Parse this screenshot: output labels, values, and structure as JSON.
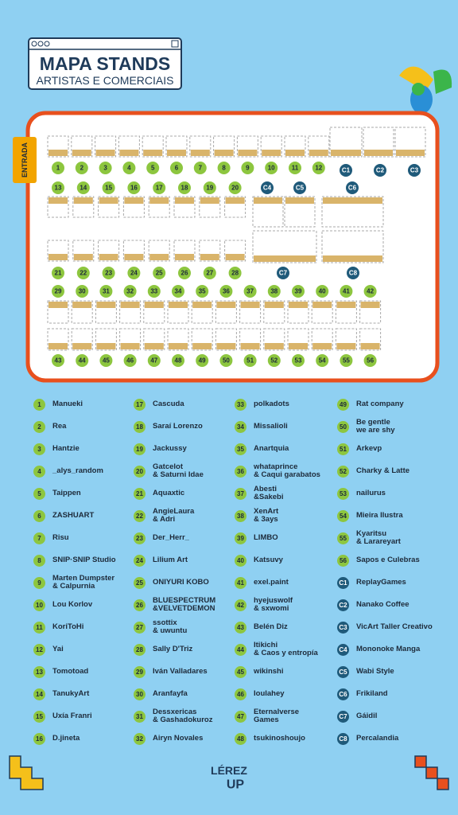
{
  "header": {
    "title": "MAPA STANDS",
    "subtitle": "ARTISTAS E COMERCIAIS"
  },
  "entrance": "ENTRADA",
  "legend": {
    "items": [
      {
        "id": "1",
        "name": "Manueki"
      },
      {
        "id": "2",
        "name": "Rea"
      },
      {
        "id": "3",
        "name": "Hantzie"
      },
      {
        "id": "4",
        "name": "_alys_random"
      },
      {
        "id": "5",
        "name": "Taippen"
      },
      {
        "id": "6",
        "name": "ZASHUART"
      },
      {
        "id": "7",
        "name": "Risu"
      },
      {
        "id": "8",
        "name": "SNIP·SNIP Studio"
      },
      {
        "id": "9",
        "name": "Marten Dumpster\n& Calpurnia"
      },
      {
        "id": "10",
        "name": "Lou Korlov"
      },
      {
        "id": "11",
        "name": "KoriToHi"
      },
      {
        "id": "12",
        "name": "Yai"
      },
      {
        "id": "13",
        "name": "Tomotoad"
      },
      {
        "id": "14",
        "name": "TanukyArt"
      },
      {
        "id": "15",
        "name": "Uxía Franri"
      },
      {
        "id": "16",
        "name": "D.jineta"
      },
      {
        "id": "17",
        "name": "Cascuda"
      },
      {
        "id": "18",
        "name": "Saraí Lorenzo"
      },
      {
        "id": "19",
        "name": "Jackussy"
      },
      {
        "id": "20",
        "name": "Gatcelot\n& Saturni Idae"
      },
      {
        "id": "21",
        "name": "Aquaxtic"
      },
      {
        "id": "22",
        "name": "AngieLaura\n& Adri"
      },
      {
        "id": "23",
        "name": "Der_Herr_"
      },
      {
        "id": "24",
        "name": "Lilium Art"
      },
      {
        "id": "25",
        "name": "ONIYURI KOBO"
      },
      {
        "id": "26",
        "name": "BLUESPECTRUM\n&VELVETDEMON"
      },
      {
        "id": "27",
        "name": "ssottix\n& uwuntu"
      },
      {
        "id": "28",
        "name": "Sally D'Triz"
      },
      {
        "id": "29",
        "name": "Iván Valladares"
      },
      {
        "id": "30",
        "name": "Aranfayfa"
      },
      {
        "id": "31",
        "name": "Dessxericas\n& Gashadokuroz"
      },
      {
        "id": "32",
        "name": "Airyn Novales"
      },
      {
        "id": "33",
        "name": "polkadots"
      },
      {
        "id": "34",
        "name": "Missalioli"
      },
      {
        "id": "35",
        "name": "Anartquia"
      },
      {
        "id": "36",
        "name": "whataprince\n& Caqui garabatos"
      },
      {
        "id": "37",
        "name": "Abesti\n&Sakebi"
      },
      {
        "id": "38",
        "name": "XenArt\n& 3ays"
      },
      {
        "id": "39",
        "name": "LIMBO"
      },
      {
        "id": "40",
        "name": "Katsuvy"
      },
      {
        "id": "41",
        "name": "exel.paint"
      },
      {
        "id": "42",
        "name": "hyejuswolf\n& sxwomi"
      },
      {
        "id": "43",
        "name": "Belén Diz"
      },
      {
        "id": "44",
        "name": "Itikichi\n& Caos y entropía"
      },
      {
        "id": "45",
        "name": "wikinshi"
      },
      {
        "id": "46",
        "name": "Ioulahey"
      },
      {
        "id": "47",
        "name": "Eternalverse\nGames"
      },
      {
        "id": "48",
        "name": "tsukinoshoujo"
      },
      {
        "id": "49",
        "name": "Rat company"
      },
      {
        "id": "50",
        "name": "Be gentle\nwe are shy"
      },
      {
        "id": "51",
        "name": "Arkevp"
      },
      {
        "id": "52",
        "name": "Charky & Latte"
      },
      {
        "id": "53",
        "name": "nailurus"
      },
      {
        "id": "54",
        "name": "Mieira Ilustra"
      },
      {
        "id": "55",
        "name": "Kyaritsu\n& Larareyart"
      },
      {
        "id": "56",
        "name": "Sapos e Culebras"
      },
      {
        "id": "C1",
        "name": "ReplayGames"
      },
      {
        "id": "C2",
        "name": "Nanako Coffee"
      },
      {
        "id": "C3",
        "name": "VicArt Taller Creativo"
      },
      {
        "id": "C4",
        "name": "Mononoke Manga"
      },
      {
        "id": "C5",
        "name": "Wabi Style"
      },
      {
        "id": "C6",
        "name": "Frikiland"
      },
      {
        "id": "C7",
        "name": "Gáidil"
      },
      {
        "id": "C8",
        "name": "Percalandia"
      }
    ]
  },
  "logo": {
    "top": "LÉREZ",
    "bottom": "UP"
  }
}
